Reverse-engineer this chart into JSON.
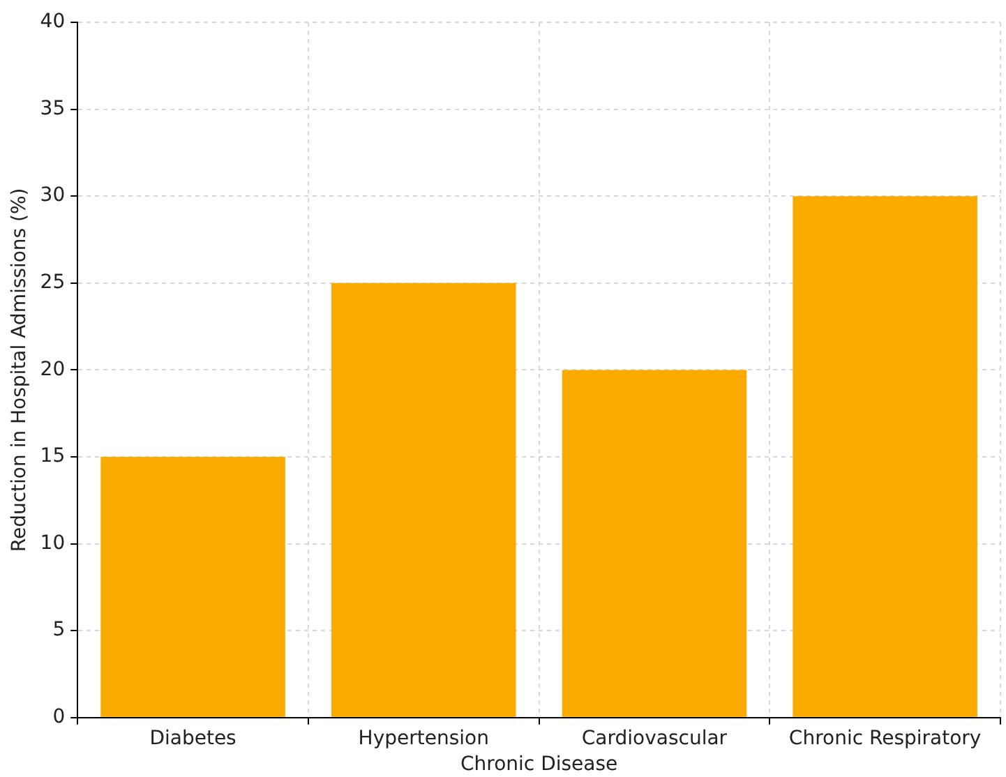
{
  "chart_data": {
    "type": "bar",
    "xlabel": "Chronic Disease",
    "ylabel": "Reduction in Hospital Admissions (%)",
    "categories": [
      "Diabetes",
      "Hypertension",
      "Cardiovascular",
      "Chronic Respiratory"
    ],
    "values": [
      15,
      25,
      20,
      30
    ],
    "color": "#fbab00",
    "ylim": [
      0,
      40
    ],
    "yticks": [
      0,
      5,
      10,
      15,
      20,
      25,
      30,
      35,
      40
    ],
    "grid": true
  }
}
